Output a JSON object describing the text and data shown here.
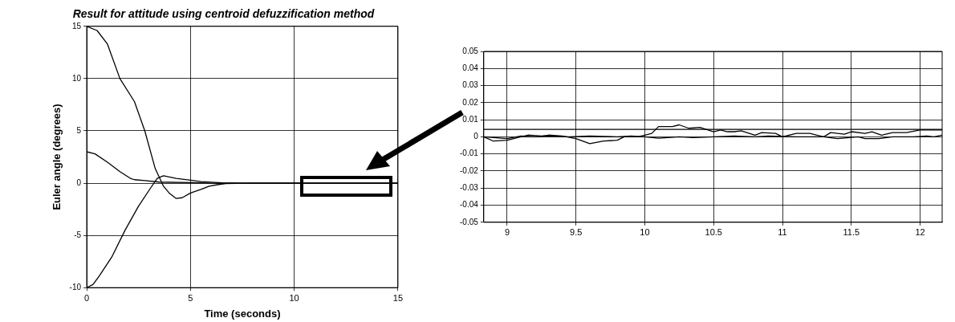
{
  "chart_data": [
    {
      "type": "line",
      "title": "Result for attitude using centroid defuzzification method",
      "xlabel": "Time (seconds)",
      "ylabel": "Euler angle (degrees)",
      "xlim": [
        0,
        15
      ],
      "xticks": [
        0,
        5,
        10,
        15
      ],
      "ylim": [
        -10,
        15
      ],
      "yticks": [
        -10,
        -5,
        0,
        5,
        10,
        15
      ],
      "grid": true,
      "legend": false,
      "marker": "none",
      "line_style": "solid",
      "series": [
        {
          "color": "#000000",
          "x": [
            0,
            0.5,
            1,
            1.6,
            2.3,
            2.8,
            3.3,
            3.7,
            4,
            4.3,
            4.6,
            5,
            5.5,
            5.9,
            6.3,
            6.7,
            7.2,
            8,
            15
          ],
          "values": [
            15,
            14.6,
            13.3,
            10,
            7.8,
            5,
            1.4,
            -0.3,
            -1,
            -1.46,
            -1.4,
            -0.95,
            -0.6,
            -0.3,
            -0.15,
            -0.05,
            -0.02,
            0,
            0
          ]
        },
        {
          "color": "#000000",
          "x": [
            0,
            0.4,
            1,
            1.6,
            2.1,
            2.3,
            2.8,
            3.5,
            5,
            6,
            15
          ],
          "values": [
            3,
            2.8,
            2,
            1.1,
            0.46,
            0.33,
            0.25,
            0.1,
            0.05,
            0,
            0
          ]
        },
        {
          "color": "#000000",
          "x": [
            0,
            0.3,
            0.6,
            1.2,
            1.85,
            2.5,
            3.1,
            3.4,
            3.7,
            4.3,
            5,
            5.5,
            6.5,
            7.5,
            15
          ],
          "values": [
            -10,
            -9.7,
            -8.9,
            -7.1,
            -4.5,
            -2.2,
            -0.4,
            0.46,
            0.7,
            0.46,
            0.28,
            0.15,
            0.03,
            0,
            0
          ]
        }
      ]
    },
    {
      "type": "line",
      "xlim": [
        8.83,
        12.16
      ],
      "xticks": [
        9,
        9.5,
        10,
        10.5,
        11,
        11.5,
        12
      ],
      "ylim": [
        -0.05,
        0.05
      ],
      "yticks": [
        -0.05,
        -0.04,
        -0.03,
        -0.02,
        -0.01,
        0,
        0.01,
        0.02,
        0.03,
        0.04,
        0.05
      ],
      "grid": true,
      "legend": false,
      "marker": "none",
      "line_style": "solid",
      "series": [
        {
          "color": "#000000",
          "x": [
            8.83,
            12.16
          ],
          "values": [
            0.0044,
            0.0044
          ]
        },
        {
          "color": "#000000",
          "x": [
            8.83,
            8.9,
            9.0,
            9.1,
            9.15,
            9.25,
            9.3,
            9.4,
            9.5,
            9.6,
            9.7,
            9.8,
            9.85,
            9.95,
            10,
            10.05,
            10.1,
            10.2,
            10.25,
            10.32,
            10.4,
            10.5,
            10.55,
            10.6,
            10.65,
            10.7,
            10.8,
            10.85,
            10.95,
            11.0,
            11.1,
            11.2,
            11.3,
            11.35,
            11.45,
            11.5,
            11.6,
            11.65,
            11.72,
            11.8,
            11.9,
            12,
            12.16
          ],
          "values": [
            0,
            -0.0025,
            -0.002,
            0,
            0.001,
            0.0005,
            0.001,
            0.0005,
            -0.001,
            -0.004,
            -0.0025,
            -0.002,
            0,
            0,
            0.001,
            0.002,
            0.006,
            0.006,
            0.007,
            0.005,
            0.0055,
            0.003,
            0.004,
            0.003,
            0.003,
            0.0035,
            0.001,
            0.0025,
            0.002,
            0,
            0.002,
            0.002,
            0,
            0.0025,
            0.0015,
            0.003,
            0.002,
            0.003,
            0.001,
            0.0025,
            0.0025,
            0.004,
            0.004
          ]
        },
        {
          "color": "#000000",
          "x": [
            8.83,
            9.0,
            9.1,
            9.2,
            9.3,
            9.45,
            9.6,
            9.8,
            9.9,
            10.0,
            10.1,
            10.25,
            10.35,
            10.5,
            10.65,
            10.8,
            10.9,
            11.1,
            11.3,
            11.4,
            11.55,
            11.6,
            11.7,
            11.8,
            11.95,
            12.05,
            12.1,
            12.16
          ],
          "values": [
            0,
            -0.001,
            0.0005,
            0,
            0.0005,
            0,
            0.0005,
            0,
            0.0005,
            0,
            -0.0008,
            0,
            -0.0005,
            0,
            0.0005,
            0,
            0.0005,
            0,
            0,
            -0.001,
            0,
            -0.001,
            -0.001,
            0,
            0,
            0.0005,
            0,
            0.001
          ]
        }
      ]
    }
  ]
}
